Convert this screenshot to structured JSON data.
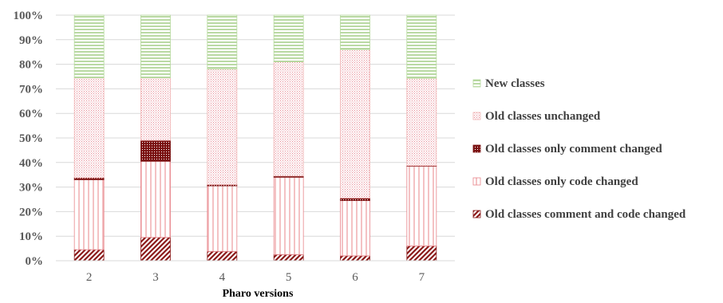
{
  "chart_data": {
    "type": "bar",
    "stacked": true,
    "percent": true,
    "categories": [
      "2",
      "3",
      "4",
      "5",
      "6",
      "7"
    ],
    "xlabel": "Pharo versions",
    "ylabel": "",
    "ylim": [
      0,
      100
    ],
    "yticks": [
      "0%",
      "10%",
      "20%",
      "30%",
      "40%",
      "50%",
      "60%",
      "70%",
      "80%",
      "90%",
      "100%"
    ],
    "grid": true,
    "legend_position": "right",
    "series": [
      {
        "name": "Old classes comment and code changed",
        "values": [
          4.5,
          9.5,
          3.8,
          2.5,
          2.0,
          6.0
        ],
        "color": "#8b1a1a",
        "pattern": "diagonal-hatch"
      },
      {
        "name": "Old classes only code changed",
        "values": [
          28.5,
          31.0,
          26.7,
          31.5,
          22.5,
          32.5
        ],
        "color": "#e8848a",
        "pattern": "vertical-lines"
      },
      {
        "name": "Old classes only comment changed",
        "values": [
          0.8,
          8.5,
          0.5,
          0.5,
          1.0,
          0.2
        ],
        "color": "#7a1010",
        "pattern": "dense-dots"
      },
      {
        "name": "Old classes unchanged",
        "values": [
          40.7,
          25.5,
          47.0,
          46.5,
          60.5,
          35.6
        ],
        "color": "#f0b4b4",
        "pattern": "sparse-dots"
      },
      {
        "name": "New classes",
        "values": [
          25.5,
          25.5,
          22.0,
          19.0,
          14.0,
          25.7
        ],
        "color": "#b5d99c",
        "pattern": "horizontal-lines"
      }
    ]
  }
}
